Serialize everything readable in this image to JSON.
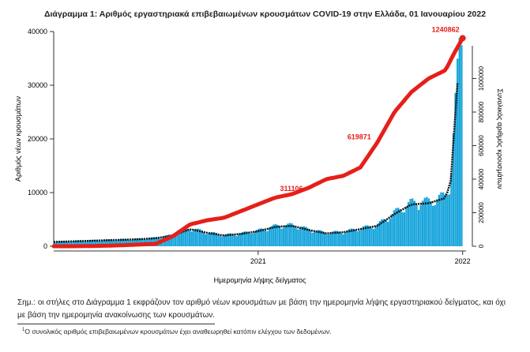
{
  "chart_data": {
    "type": "bar+line",
    "title": "Διάγραμμα 1: Αριθμός εργαστηριακά επιβεβαιωμένων κρουσμάτων COVID-19 στην Ελλάδα, 01 Ιανουαρίου 2022",
    "xlabel": "Ημερομηνία λήψης δείγματος",
    "ylabel_left": "Αριθμός νέων κρουσμάτων",
    "ylabel_right": "Συνολικός αριθμός κρουσμάτων",
    "x_ticks": [
      "2021",
      "2022"
    ],
    "y_left_ticks": [
      0,
      10000,
      20000,
      30000,
      40000
    ],
    "y_left_tick_labels": [
      "0",
      "10000",
      "20000",
      "30000",
      "40000"
    ],
    "ylim_left": [
      0,
      40000
    ],
    "y_right_ticks": [
      0,
      200000,
      400000,
      600000,
      800000,
      1000000
    ],
    "y_right_tick_labels": [
      "0",
      "200000",
      "400000",
      "600000",
      "800000",
      "1000000"
    ],
    "ylim_right": [
      0,
      1280000
    ],
    "bar_color": "#1aa6dc",
    "cumulative_color": "#e61f19",
    "avg_color": "#111111",
    "annotations": [
      {
        "text": "311106",
        "value": 311106,
        "month": 15.0
      },
      {
        "text": "619871",
        "value": 619871,
        "month": 19.0
      },
      {
        "text": "1240862",
        "value": 1240862,
        "month": 24.0
      }
    ],
    "daily_new_cases": {
      "months": [
        0,
        1,
        2,
        3,
        4,
        5,
        6,
        7,
        8,
        9,
        10,
        11,
        12,
        13,
        14,
        15,
        16,
        17,
        18,
        19,
        20,
        21,
        22,
        23,
        23.3,
        23.6,
        23.8,
        24.0
      ],
      "values": [
        800,
        900,
        1000,
        1100,
        1200,
        1300,
        1500,
        2000,
        3200,
        2500,
        2000,
        2300,
        2800,
        3600,
        3800,
        3000,
        2400,
        2600,
        3200,
        3800,
        6000,
        7800,
        8000,
        9000,
        12000,
        26000,
        35000,
        38000
      ]
    },
    "cumulative_cases": {
      "months": [
        0,
        1,
        2,
        3,
        4,
        5,
        6,
        7,
        8,
        9,
        10,
        11,
        12,
        13,
        14,
        15,
        16,
        17,
        18,
        19,
        20,
        21,
        22,
        23,
        23.5,
        24.0
      ],
      "values": [
        0,
        0,
        1000,
        3000,
        6000,
        10000,
        15000,
        60000,
        130000,
        155000,
        170000,
        210000,
        250000,
        290000,
        311106,
        350000,
        400000,
        420000,
        470000,
        619871,
        800000,
        920000,
        1000000,
        1050000,
        1150000,
        1240862
      ]
    },
    "x_range_months": [
      0,
      24.2
    ]
  },
  "note": "Σημ.: οι στήλες στο Διάγραμμα 1 εκφράζουν τον αριθμό νέων κρουσμάτων με βάση την ημερομηνία λήψης εργαστηριακού δείγματος, και όχι με βάση την ημερομηνία ανακοίνωσης των κρουσμάτων.",
  "footnote_marker": "1",
  "footnote": "Ο συνολικός αριθμός επιβεβαιωμένων κρουσμάτων έχει αναθεωρηθεί κατόπιν ελέγχου των δεδομένων."
}
